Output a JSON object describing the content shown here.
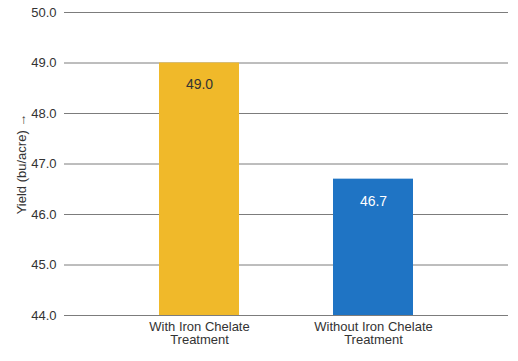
{
  "chart_data": {
    "type": "bar",
    "categories": [
      "With Iron Chelate\nTreatment",
      "Without Iron Chelate\nTreatment"
    ],
    "values": [
      49.0,
      46.7
    ],
    "value_labels": [
      "49.0",
      "46.7"
    ],
    "colors": [
      "#f0b92a",
      "#1f74c4"
    ],
    "y_label": "Yield (bu/acre)",
    "ylim": [
      44,
      50
    ],
    "yticks": [
      44,
      45,
      46,
      47,
      48,
      49,
      50
    ],
    "grid": true,
    "data_labels": true
  }
}
